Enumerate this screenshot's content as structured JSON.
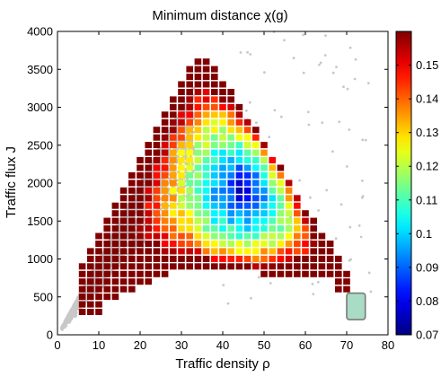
{
  "chart_data": {
    "type": "heatmap",
    "title": "Minimum distance χ(g)",
    "xlabel": "Traffic density ρ",
    "ylabel": "Traffic flux J",
    "xlim": [
      0,
      80
    ],
    "ylim": [
      0,
      4000
    ],
    "xticks": [
      "0",
      "10",
      "20",
      "30",
      "40",
      "50",
      "60",
      "70",
      "80"
    ],
    "yticks": [
      "0",
      "500",
      "1000",
      "1500",
      "2000",
      "2500",
      "3000",
      "3500",
      "4000"
    ],
    "colorbar": {
      "range": [
        0.07,
        0.16
      ],
      "ticks": [
        "0.07",
        "0.08",
        "0.09",
        "0.1",
        "0.11",
        "0.12",
        "0.13",
        "0.14",
        "0.15"
      ],
      "colormap": "jet"
    },
    "grid": false,
    "cell_size": {
      "dx": 2,
      "dy": 100
    },
    "background_points": {
      "color": "#c8c8c8",
      "description": "gray scatter of raw samples bounded above by the line J = 100·ρ"
    },
    "region_colormap_profile": {
      "core_center": [
        45,
        1900
      ],
      "core_value": 0.075,
      "edge_value": 0.155
    },
    "annotation_box": {
      "x": [
        70,
        74.5
      ],
      "y": [
        200,
        550
      ],
      "color": "#a8dcc4"
    }
  }
}
